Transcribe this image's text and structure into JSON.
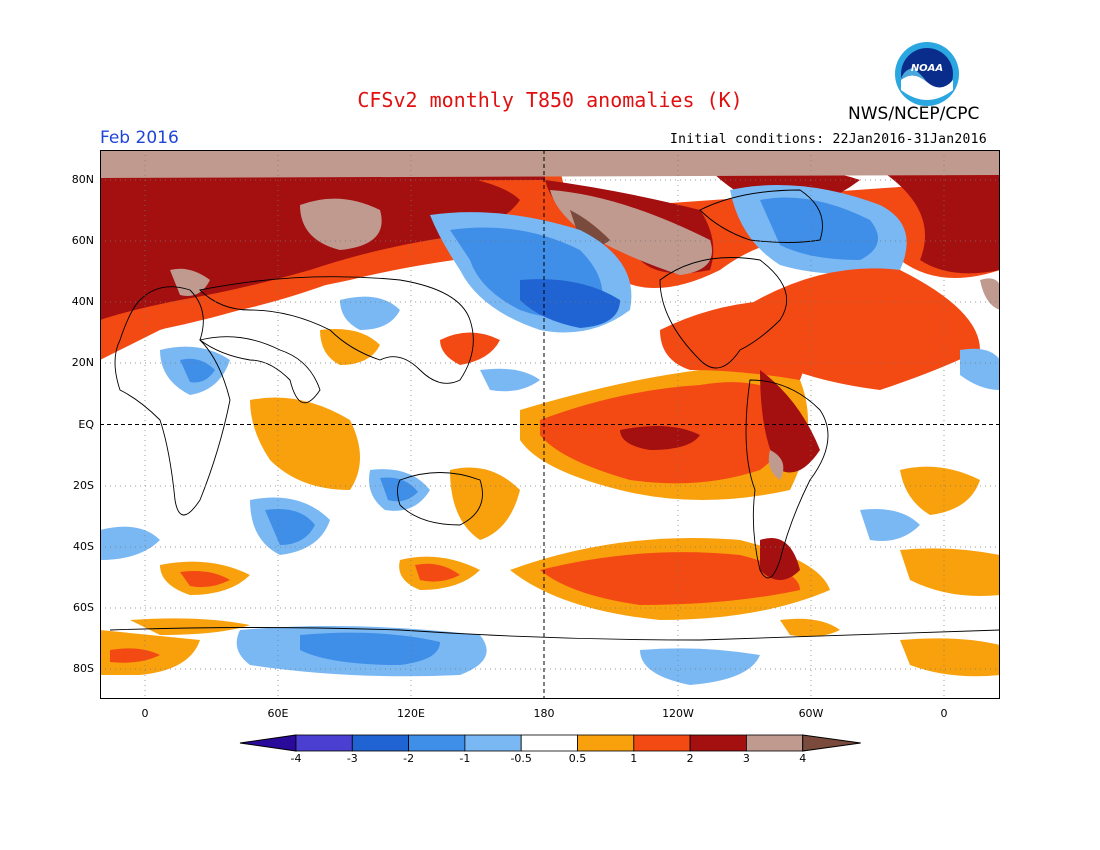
{
  "title": "CFSv2 monthly T850 anomalies (K)",
  "month_label": "Feb 2016",
  "initial_conditions": "Initial conditions: 22Jan2016-31Jan2016",
  "org_label": "NWS/NCEP/CPC",
  "logo_text": "NOAA",
  "colors": {
    "title": "#e01010",
    "month_label": "#1f44d8",
    "bins": [
      "#2a0a9a",
      "#4a3fd0",
      "#1f64d2",
      "#3f8ee8",
      "#7ab8f4",
      "#ffffff",
      "#f8a10d",
      "#f34a14",
      "#a40f0f",
      "#c09a8f",
      "#7a4a3c"
    ]
  },
  "lat_labels": [
    "80N",
    "60N",
    "40N",
    "20N",
    "EQ",
    "20S",
    "40S",
    "60S",
    "80S"
  ],
  "lon_labels": [
    "0",
    "60E",
    "120E",
    "180",
    "120W",
    "60W",
    "0"
  ],
  "colorbar": {
    "labels": [
      "-4",
      "-3",
      "-2",
      "-1",
      "-0.5",
      "0.5",
      "1",
      "2",
      "3",
      "4"
    ]
  }
}
